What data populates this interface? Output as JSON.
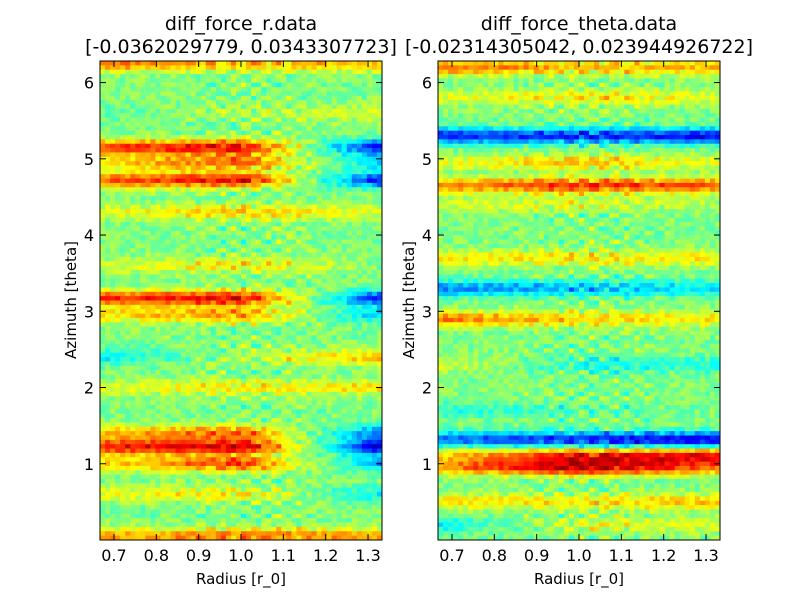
{
  "chart_data": [
    {
      "type": "heatmap",
      "title": "diff_force_r.data",
      "subtitle": "[-0.0362029779, 0.0343307723]",
      "xlabel": "Radius [r_0]",
      "ylabel": "Azimuth [theta]",
      "xlim": [
        0.667,
        1.333
      ],
      "ylim": [
        0,
        6.283
      ],
      "xticks": [
        "0.7",
        "0.8",
        "0.9",
        "1.0",
        "1.1",
        "1.2",
        "1.3"
      ],
      "xtick_values": [
        0.7,
        0.8,
        0.9,
        1.0,
        1.1,
        1.2,
        1.3
      ],
      "yticks": [
        "1",
        "2",
        "3",
        "4",
        "5",
        "6"
      ],
      "ytick_values": [
        1,
        2,
        3,
        4,
        5,
        6
      ],
      "value_range": [
        -0.0362029779,
        0.0343307723
      ],
      "colormap": "jet",
      "bands": [
        {
          "theta": 0.05,
          "inner": 0.45,
          "mid": 0.55,
          "outer": 0.45
        },
        {
          "theta": 0.6,
          "inner": 0.2,
          "mid": 0.3,
          "outer": -0.3
        },
        {
          "theta": 1.0,
          "inner": 0.3,
          "mid": 0.7,
          "outer": -0.5
        },
        {
          "theta": 1.22,
          "inner": 0.75,
          "mid": 0.9,
          "outer": -0.9
        },
        {
          "theta": 1.4,
          "inner": 0.35,
          "mid": 0.6,
          "outer": -0.6
        },
        {
          "theta": 2.0,
          "inner": 0.2,
          "mid": 0.3,
          "outer": 0.3
        },
        {
          "theta": 2.4,
          "inner": -0.3,
          "mid": 0.1,
          "outer": 0.4
        },
        {
          "theta": 2.95,
          "inner": 0.3,
          "mid": 0.5,
          "outer": -0.4
        },
        {
          "theta": 3.17,
          "inner": 0.7,
          "mid": 0.85,
          "outer": -0.8
        },
        {
          "theta": 3.6,
          "inner": 0.15,
          "mid": 0.3,
          "outer": 0.0
        },
        {
          "theta": 4.3,
          "inner": 0.2,
          "mid": 0.35,
          "outer": 0.2
        },
        {
          "theta": 4.72,
          "inner": 0.6,
          "mid": 0.8,
          "outer": -0.8
        },
        {
          "theta": 4.95,
          "inner": 0.3,
          "mid": 0.6,
          "outer": -0.4
        },
        {
          "theta": 5.15,
          "inner": 0.65,
          "mid": 0.85,
          "outer": -0.85
        },
        {
          "theta": 5.6,
          "inner": -0.1,
          "mid": 0.1,
          "outer": 0.2
        },
        {
          "theta": 6.25,
          "inner": 0.6,
          "mid": 0.4,
          "outer": 0.4
        }
      ]
    },
    {
      "type": "heatmap",
      "title": "diff_force_theta.data",
      "subtitle": "[-0.02314305042, 0.023944926722]",
      "xlabel": "Radius [r_0]",
      "ylabel": "Azimuth [theta]",
      "xlim": [
        0.667,
        1.333
      ],
      "ylim": [
        0,
        6.283
      ],
      "xticks": [
        "0.7",
        "0.8",
        "0.9",
        "1.0",
        "1.1",
        "1.2",
        "1.3"
      ],
      "xtick_values": [
        0.7,
        0.8,
        0.9,
        1.0,
        1.1,
        1.2,
        1.3
      ],
      "yticks": [
        "1",
        "2",
        "3",
        "4",
        "5",
        "6"
      ],
      "ytick_values": [
        1,
        2,
        3,
        4,
        5,
        6
      ],
      "value_range": [
        -0.02314305042,
        0.023944926722
      ],
      "colormap": "jet",
      "bands": [
        {
          "theta": 0.2,
          "inner": -0.3,
          "mid": 0.2,
          "outer": 0.2
        },
        {
          "theta": 0.5,
          "inner": 0.3,
          "mid": 0.3,
          "outer": 0.4
        },
        {
          "theta": 0.95,
          "inner": 0.45,
          "mid": 0.9,
          "outer": 0.5
        },
        {
          "theta": 1.1,
          "inner": 0.3,
          "mid": 0.75,
          "outer": 0.8
        },
        {
          "theta": 1.32,
          "inner": -0.55,
          "mid": -0.75,
          "outer": -0.85
        },
        {
          "theta": 1.7,
          "inner": -0.2,
          "mid": -0.1,
          "outer": 0.0
        },
        {
          "theta": 2.3,
          "inner": 0.2,
          "mid": -0.2,
          "outer": -0.2
        },
        {
          "theta": 2.9,
          "inner": 0.55,
          "mid": 0.35,
          "outer": 0.3
        },
        {
          "theta": 3.3,
          "inner": -0.5,
          "mid": -0.4,
          "outer": -0.3
        },
        {
          "theta": 3.7,
          "inner": 0.3,
          "mid": 0.3,
          "outer": 0.3
        },
        {
          "theta": 4.4,
          "inner": 0.15,
          "mid": 0.2,
          "outer": 0.1
        },
        {
          "theta": 4.65,
          "inner": 0.5,
          "mid": 0.7,
          "outer": 0.6
        },
        {
          "theta": 4.95,
          "inner": 0.2,
          "mid": 0.4,
          "outer": 0.2
        },
        {
          "theta": 5.3,
          "inner": -0.75,
          "mid": -0.7,
          "outer": -0.8
        },
        {
          "theta": 5.8,
          "inner": 0.2,
          "mid": 0.3,
          "outer": 0.2
        },
        {
          "theta": 6.2,
          "inner": 0.6,
          "mid": 0.4,
          "outer": 0.4
        }
      ]
    }
  ]
}
